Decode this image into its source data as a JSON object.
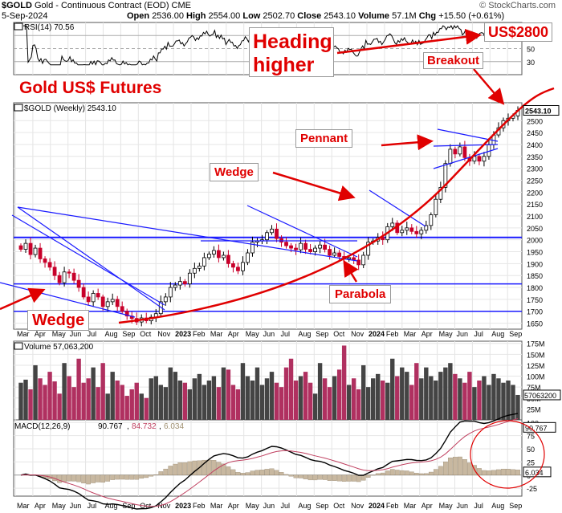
{
  "header": {
    "symbol": "$GOLD",
    "name": "Gold - Continuous Contract (EOD)",
    "exchange": "CME",
    "brand": "© StockCharts.com",
    "date": "5-Sep-2024",
    "open_label": "Open",
    "open": "2536.00",
    "high_label": "High",
    "high": "2554.00",
    "low_label": "Low",
    "low": "2502.70",
    "close_label": "Close",
    "close": "2543.10",
    "volume_label": "Volume",
    "volume": "57.1M",
    "chg_label": "Chg",
    "chg": "+15.50 (+0.61%)"
  },
  "annotations": {
    "heading_higher": "Heading higher",
    "target": "US$2800",
    "breakout": "Breakout",
    "title": "Gold US$ Futures",
    "pennant": "Pennant",
    "wedge_mid": "Wedge",
    "wedge_left": "Wedge",
    "parabola": "Parabola"
  },
  "chart_data": [
    {
      "type": "line",
      "panel": "rsi",
      "legend": "RSI(14) 70.56",
      "last_label": "70.56",
      "y_ticks": [
        "70",
        "50",
        "30"
      ],
      "ylim": [
        10,
        90
      ]
    },
    {
      "type": "candlestick",
      "panel": "price",
      "legend": "$GOLD (Weekly) 2543.10",
      "last_label": "2543.10",
      "y_ticks": [
        "1650",
        "1700",
        "1750",
        "1800",
        "1850",
        "1900",
        "1950",
        "2000",
        "2050",
        "2100",
        "2150",
        "2200",
        "2250",
        "2300",
        "2350",
        "2400",
        "2450",
        "2500"
      ],
      "ylim": [
        1625,
        2575
      ],
      "x_labels": [
        "Mar",
        "Apr",
        "May",
        "Jun",
        "Jul",
        "Aug",
        "Sep",
        "Oct",
        "Nov",
        "2023",
        "Feb",
        "Mar",
        "Apr",
        "May",
        "Jun",
        "Jul",
        "Aug",
        "Sep",
        "Oct",
        "Nov",
        "2024",
        "Feb",
        "Mar",
        "Apr",
        "May",
        "Jun",
        "Jul",
        "Aug",
        "Sep"
      ],
      "support_levels": [
        2010,
        1815,
        1700
      ],
      "weekly_close": [
        1960,
        1985,
        1938,
        1965,
        1920,
        1905,
        1885,
        1850,
        1820,
        1865,
        1860,
        1830,
        1800,
        1760,
        1740,
        1775,
        1760,
        1720,
        1740,
        1750,
        1720,
        1700,
        1680,
        1670,
        1655,
        1672,
        1660,
        1675,
        1690,
        1740,
        1760,
        1800,
        1810,
        1825,
        1815,
        1860,
        1880,
        1890,
        1925,
        1940,
        1955,
        1925,
        1935,
        1900,
        1885,
        1870,
        1905,
        1945,
        1990,
        1995,
        2000,
        2030,
        2045,
        2005,
        1990,
        1975,
        1965,
        1958,
        1985,
        1960,
        1950,
        1965,
        1978,
        1960,
        1935,
        1945,
        1930,
        1920,
        1925,
        1915,
        1895,
        1935,
        1990,
        1995,
        2010,
        2000,
        2055,
        2070,
        2030,
        2040,
        2050,
        2035,
        2025,
        2040,
        2060,
        2105,
        2170,
        2220,
        2320,
        2380,
        2360,
        2390,
        2345,
        2330,
        2350,
        2330,
        2350,
        2400,
        2440,
        2470,
        2500,
        2510,
        2520,
        2543
      ]
    },
    {
      "type": "bar",
      "panel": "volume",
      "legend": "Volume 57,063,200",
      "last_label": "57063200",
      "y_ticks": [
        "175M",
        "150M",
        "125M",
        "100M",
        "75M",
        "50M",
        "25M"
      ],
      "ylim": [
        0,
        180
      ],
      "values_millions": [
        85,
        92,
        70,
        125,
        95,
        80,
        110,
        88,
        60,
        130,
        100,
        75,
        140,
        85,
        95,
        120,
        75,
        130,
        60,
        110,
        90,
        80,
        55,
        70,
        85,
        60,
        50,
        95,
        100,
        80,
        75,
        120,
        110,
        90,
        85,
        70,
        95,
        105,
        80,
        90,
        100,
        75,
        120,
        115,
        80,
        70,
        130,
        100,
        90,
        120,
        80,
        95,
        110,
        85,
        75,
        120,
        140,
        90,
        100,
        110,
        85,
        60,
        130,
        95,
        75,
        100,
        115,
        170,
        80,
        95,
        70,
        125,
        75,
        95,
        105,
        90,
        85,
        140,
        100,
        120,
        110,
        80,
        130,
        95,
        120,
        100,
        90,
        110,
        120,
        130,
        105,
        95,
        85,
        110,
        75,
        90,
        100,
        80,
        105,
        95,
        85,
        90,
        80,
        57
      ]
    },
    {
      "type": "line",
      "panel": "macd",
      "legend_name": "MACD(12,26,9)",
      "macd": "90.767",
      "signal": "84.732",
      "histogram": "6.034",
      "y_ticks": [
        "100",
        "75",
        "50",
        "25",
        "0",
        "-25"
      ],
      "ylim": [
        -40,
        105
      ]
    }
  ],
  "colors": {
    "up": "#000000",
    "down": "#c8002a",
    "trend": "#1a1aff",
    "parabola": "#e00000",
    "annotation": "#e00000",
    "rsi": "#000000",
    "volume_down": "#b03060",
    "volume_up": "#444444",
    "macd": "#000000",
    "signal": "#c04060",
    "histogram": "#c8b8a0"
  }
}
